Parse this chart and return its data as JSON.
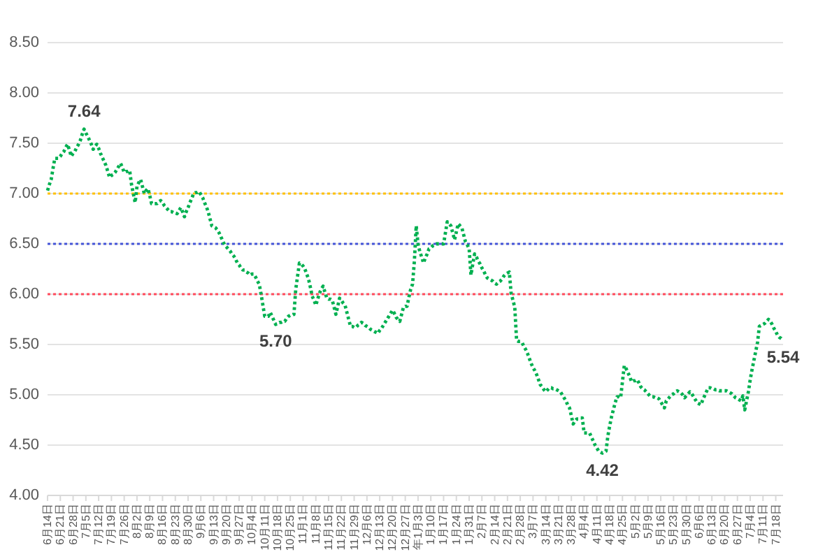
{
  "chart_data": {
    "type": "line",
    "categories": [
      "6月14日",
      null,
      null,
      null,
      null,
      null,
      null,
      "6月21日",
      null,
      null,
      null,
      null,
      null,
      null,
      "6月28日",
      null,
      null,
      null,
      null,
      null,
      null,
      "7月5日",
      null,
      null,
      null,
      null,
      null,
      null,
      "7月12日",
      null,
      null,
      null,
      null,
      null,
      null,
      "7月19日",
      null,
      null,
      null,
      null,
      null,
      null,
      "7月26日",
      null,
      null,
      null,
      null,
      null,
      null,
      "8月2日",
      null,
      null,
      null,
      null,
      null,
      null,
      "8月9日",
      null,
      null,
      null,
      null,
      null,
      null,
      "8月16日",
      null,
      null,
      null,
      null,
      null,
      null,
      "8月23日",
      null,
      null,
      null,
      null,
      null,
      null,
      "8月30日",
      null,
      null,
      null,
      null,
      null,
      null,
      "9月6日",
      null,
      null,
      null,
      null,
      null,
      null,
      "9月13日",
      null,
      null,
      null,
      null,
      null,
      null,
      "9月20日",
      null,
      null,
      null,
      null,
      null,
      null,
      "9月27日",
      null,
      null,
      null,
      null,
      null,
      null,
      "10月4日",
      null,
      null,
      null,
      null,
      null,
      null,
      "10月11日",
      null,
      null,
      null,
      null,
      null,
      null,
      "10月18日",
      null,
      null,
      null,
      null,
      null,
      null,
      "10月25日",
      null,
      null,
      null,
      null,
      null,
      null,
      "11月1日",
      null,
      null,
      null,
      null,
      null,
      null,
      "11月8日",
      null,
      null,
      null,
      null,
      null,
      null,
      "11月15日",
      null,
      null,
      null,
      null,
      null,
      null,
      "11月22日",
      null,
      null,
      null,
      null,
      null,
      null,
      "11月29日",
      null,
      null,
      null,
      null,
      null,
      null,
      "12月6日",
      null,
      null,
      null,
      null,
      null,
      null,
      "12月13日",
      null,
      null,
      null,
      null,
      null,
      null,
      "12月20日",
      null,
      null,
      null,
      null,
      null,
      null,
      "12月27日",
      null,
      null,
      null,
      null,
      null,
      null,
      "年1月3日",
      null,
      null,
      null,
      null,
      null,
      null,
      "1月10日",
      null,
      null,
      null,
      null,
      null,
      null,
      "1月17日",
      null,
      null,
      null,
      null,
      null,
      null,
      "1月24日",
      null,
      null,
      null,
      null,
      null,
      null,
      "1月31日",
      null,
      null,
      null,
      null,
      null,
      null,
      "2月7日",
      null,
      null,
      null,
      null,
      null,
      null,
      "2月14日",
      null,
      null,
      null,
      null,
      null,
      null,
      "2月21日",
      null,
      null,
      null,
      null,
      null,
      null,
      "2月28日",
      null,
      null,
      null,
      null,
      null,
      null,
      "3月7日",
      null,
      null,
      null,
      null,
      null,
      null,
      "3月14日",
      null,
      null,
      null,
      null,
      null,
      null,
      "3月21日",
      null,
      null,
      null,
      null,
      null,
      null,
      "3月28日",
      null,
      null,
      null,
      null,
      null,
      null,
      "4月4日",
      null,
      null,
      null,
      null,
      null,
      null,
      "4月11日",
      null,
      null,
      null,
      null,
      null,
      null,
      "4月18日",
      null,
      null,
      null,
      null,
      null,
      null,
      "4月25日",
      null,
      null,
      null,
      null,
      null,
      null,
      "5月2日",
      null,
      null,
      null,
      null,
      null,
      null,
      "5月9日",
      null,
      null,
      null,
      null,
      null,
      null,
      "5月16日",
      null,
      null,
      null,
      null,
      null,
      null,
      "5月23日",
      null,
      null,
      null,
      null,
      null,
      null,
      "5月30日",
      null,
      null,
      null,
      null,
      null,
      null,
      "6月6日",
      null,
      null,
      null,
      null,
      null,
      null,
      "6月13日",
      null,
      null,
      null,
      null,
      null,
      null,
      "6月20日",
      null,
      null,
      null,
      null,
      null,
      null,
      "6月27日",
      null,
      null,
      null,
      null,
      null,
      null,
      "7月4日",
      null,
      null,
      null,
      null,
      null,
      null,
      "7月11日",
      null,
      null,
      null,
      null,
      null,
      null,
      "7月18日",
      null,
      null,
      null,
      null
    ],
    "values": [
      7.03,
      7.09,
      7.14,
      7.25,
      7.35,
      7.35,
      7.35,
      7.37,
      7.4,
      7.42,
      7.46,
      7.49,
      7.43,
      7.37,
      7.4,
      7.42,
      7.46,
      7.49,
      7.53,
      7.59,
      7.64,
      7.6,
      7.57,
      7.53,
      7.49,
      7.44,
      7.47,
      7.49,
      7.45,
      7.4,
      7.36,
      7.32,
      7.28,
      7.22,
      7.16,
      7.18,
      7.19,
      7.21,
      7.24,
      7.27,
      7.3,
      7.26,
      7.21,
      7.22,
      7.22,
      7.23,
      7.09,
      7.0,
      6.91,
      7.07,
      7.11,
      7.14,
      7.07,
      7.0,
      7.03,
      7.05,
      6.98,
      6.9,
      6.9,
      6.9,
      6.9,
      6.92,
      6.93,
      6.91,
      6.88,
      6.86,
      6.84,
      6.82,
      6.82,
      6.81,
      6.81,
      6.8,
      6.83,
      6.86,
      6.82,
      6.77,
      6.82,
      6.86,
      6.91,
      6.95,
      7.0,
      7.01,
      7.01,
      7.02,
      6.99,
      6.96,
      6.91,
      6.87,
      6.82,
      6.75,
      6.68,
      6.67,
      6.66,
      6.64,
      6.61,
      6.57,
      6.53,
      6.49,
      6.47,
      6.45,
      6.43,
      6.4,
      6.38,
      6.35,
      6.31,
      6.29,
      6.26,
      6.24,
      6.24,
      6.22,
      6.21,
      6.19,
      6.2,
      6.2,
      6.17,
      6.13,
      6.1,
      6.0,
      5.89,
      5.78,
      5.78,
      5.78,
      5.82,
      5.78,
      5.74,
      5.7,
      5.71,
      5.72,
      5.72,
      5.73,
      5.73,
      5.76,
      5.78,
      5.79,
      5.79,
      5.8,
      6.05,
      6.18,
      6.31,
      6.3,
      6.28,
      6.25,
      6.2,
      6.15,
      6.07,
      5.98,
      5.94,
      5.89,
      5.95,
      6.01,
      6.05,
      6.08,
      6.02,
      5.96,
      5.95,
      5.95,
      5.94,
      5.87,
      5.8,
      5.88,
      5.96,
      5.94,
      5.91,
      5.89,
      5.82,
      5.75,
      5.68,
      5.68,
      5.67,
      5.67,
      5.69,
      5.7,
      5.72,
      5.71,
      5.69,
      5.68,
      5.67,
      5.65,
      5.64,
      5.63,
      5.62,
      5.61,
      5.64,
      5.66,
      5.69,
      5.72,
      5.75,
      5.78,
      5.81,
      5.84,
      5.81,
      5.77,
      5.75,
      5.73,
      5.8,
      5.87,
      5.88,
      5.88,
      5.97,
      6.05,
      6.1,
      6.33,
      6.68,
      6.5,
      6.42,
      6.37,
      6.31,
      6.36,
      6.4,
      6.45,
      6.46,
      6.48,
      6.49,
      6.5,
      6.5,
      6.5,
      6.5,
      6.5,
      6.61,
      6.72,
      6.7,
      6.68,
      6.61,
      6.54,
      6.62,
      6.7,
      6.68,
      6.66,
      6.59,
      6.52,
      6.49,
      6.45,
      6.19,
      6.3,
      6.4,
      6.37,
      6.33,
      6.3,
      6.26,
      6.23,
      6.19,
      6.16,
      6.15,
      6.14,
      6.13,
      6.11,
      6.1,
      6.12,
      6.13,
      6.15,
      6.18,
      6.2,
      6.21,
      6.22,
      6.01,
      5.94,
      5.87,
      5.54,
      5.53,
      5.53,
      5.52,
      5.48,
      5.45,
      5.41,
      5.36,
      5.31,
      5.27,
      5.24,
      5.2,
      5.15,
      5.1,
      5.08,
      5.05,
      5.03,
      5.05,
      5.07,
      5.07,
      5.06,
      5.06,
      5.05,
      5.04,
      5.03,
      5.0,
      4.97,
      4.94,
      4.9,
      4.87,
      4.79,
      4.71,
      4.74,
      4.76,
      4.76,
      4.77,
      4.77,
      4.62,
      4.62,
      4.62,
      4.62,
      4.58,
      4.54,
      4.5,
      4.47,
      4.44,
      4.43,
      4.42,
      4.43,
      4.44,
      4.59,
      4.69,
      4.78,
      4.85,
      4.92,
      4.98,
      4.98,
      4.97,
      5.13,
      5.29,
      5.26,
      5.22,
      5.18,
      5.13,
      5.14,
      5.14,
      5.15,
      5.12,
      5.08,
      5.06,
      5.05,
      5.03,
      5.01,
      4.99,
      4.98,
      4.98,
      4.97,
      4.97,
      4.96,
      4.93,
      4.9,
      4.87,
      4.94,
      4.96,
      4.98,
      5.0,
      5.01,
      5.03,
      5.04,
      5.03,
      5.02,
      5.0,
      4.97,
      4.99,
      5.01,
      5.03,
      5.01,
      4.98,
      4.95,
      4.92,
      4.91,
      4.9,
      4.95,
      4.99,
      5.03,
      5.07,
      5.07,
      5.06,
      5.06,
      5.05,
      5.05,
      5.04,
      5.04,
      5.04,
      5.04,
      5.04,
      5.03,
      5.02,
      5.01,
      4.99,
      4.97,
      4.96,
      4.95,
      4.94,
      4.99,
      4.85,
      4.94,
      5.03,
      5.15,
      5.25,
      5.34,
      5.43,
      5.52,
      5.68,
      5.69,
      5.7,
      5.71,
      5.73,
      5.75,
      5.73,
      5.7,
      5.66,
      5.63,
      5.59,
      5.57,
      5.56,
      5.54
    ],
    "value_labels": [
      null,
      null,
      null,
      null,
      null,
      null,
      null,
      null,
      null,
      null,
      null,
      null,
      null,
      null,
      null,
      null,
      null,
      null,
      null,
      null,
      "7.64",
      null,
      null,
      null,
      null,
      null,
      null,
      null,
      null,
      null,
      null,
      null,
      null,
      null,
      null,
      null,
      null,
      null,
      null,
      null,
      null,
      null,
      null,
      null,
      null,
      null,
      null,
      null,
      null,
      null,
      null,
      null,
      null,
      null,
      null,
      null,
      null,
      null,
      null,
      null,
      null,
      null,
      null,
      null,
      null,
      null,
      null,
      null,
      null,
      null,
      null,
      null,
      null,
      null,
      null,
      null,
      null,
      null,
      null,
      null,
      null,
      null,
      null,
      null,
      null,
      null,
      null,
      null,
      null,
      null,
      null,
      null,
      null,
      null,
      null,
      null,
      null,
      null,
      null,
      null,
      null,
      null,
      null,
      null,
      null,
      null,
      null,
      null,
      null,
      null,
      null,
      null,
      null,
      null,
      null,
      null,
      null,
      null,
      null,
      null,
      null,
      null,
      null,
      null,
      null,
      "5.70",
      null,
      null,
      null,
      null,
      null,
      null,
      null,
      null,
      null,
      null,
      null,
      null,
      null,
      null,
      null,
      null,
      null,
      null,
      null,
      null,
      null,
      null,
      null,
      null,
      null,
      null,
      null,
      null,
      null,
      null,
      null,
      null,
      null,
      null,
      null,
      null,
      null,
      null,
      null,
      null,
      null,
      null,
      null,
      null,
      null,
      null,
      null,
      null,
      null,
      null,
      null,
      null,
      null,
      null,
      null,
      null,
      null,
      null,
      null,
      null,
      null,
      null,
      null,
      null,
      null,
      null,
      null,
      null,
      null,
      null,
      null,
      null,
      null,
      null,
      null,
      null,
      null,
      null,
      null,
      null,
      null,
      null,
      null,
      null,
      null,
      null,
      null,
      null,
      null,
      null,
      null,
      null,
      null,
      null,
      null,
      null,
      null,
      null,
      null,
      null,
      null,
      null,
      null,
      null,
      null,
      null,
      null,
      null,
      null,
      null,
      null,
      null,
      null,
      null,
      null,
      null,
      null,
      null,
      null,
      null,
      null,
      null,
      null,
      null,
      null,
      null,
      null,
      null,
      null,
      null,
      null,
      null,
      null,
      null,
      null,
      null,
      null,
      null,
      null,
      null,
      null,
      null,
      null,
      null,
      null,
      null,
      null,
      null,
      null,
      null,
      null,
      null,
      null,
      null,
      null,
      null,
      null,
      null,
      null,
      null,
      null,
      null,
      null,
      null,
      null,
      null,
      null,
      null,
      null,
      null,
      null,
      null,
      null,
      null,
      null,
      null,
      null,
      null,
      "4.42",
      null,
      null,
      null,
      null,
      null,
      null,
      null,
      null,
      null,
      null,
      null,
      null,
      null,
      null,
      null,
      null,
      null,
      null,
      null,
      null,
      null,
      null,
      null,
      null,
      null,
      null,
      null,
      null,
      null,
      null,
      null,
      null,
      null,
      null,
      null,
      null,
      null,
      null,
      null,
      null,
      null,
      null,
      null,
      null,
      null,
      null,
      null,
      null,
      null,
      null,
      null,
      null,
      null,
      null,
      null,
      null,
      null,
      null,
      null,
      null,
      null,
      null,
      null,
      null,
      null,
      null,
      null,
      null,
      null,
      null,
      null,
      null,
      null,
      null,
      null,
      null,
      null,
      null,
      null,
      null,
      null,
      null,
      null,
      null,
      null,
      null,
      null,
      null,
      null,
      null,
      null,
      null,
      null,
      null,
      null,
      null,
      null,
      null,
      "5.54"
    ],
    "color": "#00b050",
    "line_style": "dotted",
    "ylim": [
      4,
      8.5
    ],
    "yticks": [
      {
        "value": 4,
        "label": "4.00"
      },
      {
        "value": 4.5,
        "label": "4.50"
      },
      {
        "value": 5,
        "label": "5.00"
      },
      {
        "value": 5.5,
        "label": "5.50"
      },
      {
        "value": 6,
        "label": "6.00"
      },
      {
        "value": 6.5,
        "label": "6.50"
      },
      {
        "value": 7,
        "label": "7.00"
      },
      {
        "value": 7.5,
        "label": "7.50"
      },
      {
        "value": 8,
        "label": "8.00"
      },
      {
        "value": 8.5,
        "label": "8.50"
      }
    ],
    "grid": "y",
    "ref_lines": [
      {
        "axis": "y",
        "value": 7,
        "color": "#ffc000",
        "line_style": "dotted"
      },
      {
        "axis": "y",
        "value": 6.5,
        "color": "#4455d8",
        "line_style": "dotted"
      },
      {
        "axis": "y",
        "value": 6,
        "color": "#ff4b5c",
        "line_style": "dotted"
      }
    ]
  }
}
